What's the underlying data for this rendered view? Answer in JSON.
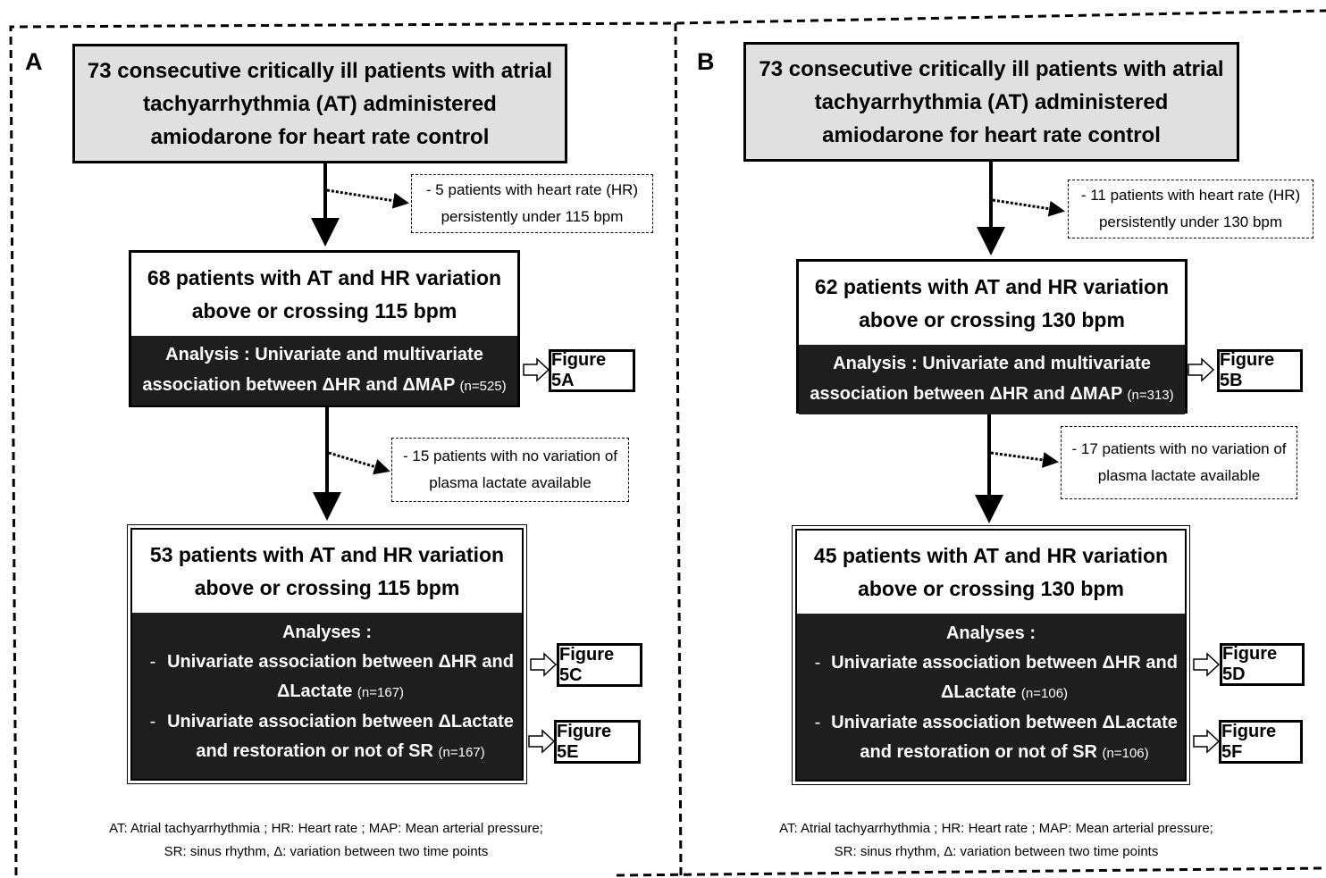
{
  "panels": [
    {
      "letter": "A",
      "top_box": "73 consecutive critically ill patients with atrial tachyarrhythmia (AT) administered amiodarone for heart rate control",
      "exclusion1": "- 5 patients with heart rate (HR) persistently under 115 bpm",
      "mid_title": "68 patients with AT and HR variation above or crossing 115 bpm",
      "mid_analysis": "Analysis : Univariate and multivariate association between ΔHR and ΔMAP",
      "mid_n": "(n=525)",
      "fig1": "Figure 5A",
      "exclusion2": "- 15 patients with no variation of plasma lactate available",
      "bot_title": "53 patients with AT and HR variation above or crossing 115 bpm",
      "bot_head": "Analyses :",
      "bullet1": "Univariate association between ΔHR and ΔLactate",
      "bullet1_n": "(n=167)",
      "bullet2": "Univariate association between ΔLactate and restoration or not of SR",
      "bullet2_n": "(n=167)",
      "fig2": "Figure 5C",
      "fig3": "Figure 5E",
      "footnote1": "AT: Atrial tachyarrhythmia ; HR: Heart rate ; MAP: Mean arterial pressure;",
      "footnote2": "SR: sinus rhythm, Δ: variation between two time points"
    },
    {
      "letter": "B",
      "top_box": "73 consecutive critically ill patients with atrial tachyarrhythmia (AT) administered amiodarone for heart rate control",
      "exclusion1": "- 11 patients with heart rate (HR) persistently under 130 bpm",
      "mid_title": "62 patients with AT and HR variation above or crossing 130 bpm",
      "mid_analysis": "Analysis : Univariate and multivariate association between ΔHR and ΔMAP",
      "mid_n": "(n=313)",
      "fig1": "Figure 5B",
      "exclusion2": "- 17 patients with no variation of plasma lactate available",
      "bot_title": "45 patients with AT and HR variation above or crossing 130 bpm",
      "bot_head": "Analyses :",
      "bullet1": "Univariate association between ΔHR and ΔLactate",
      "bullet1_n": "(n=106)",
      "bullet2": "Univariate association between ΔLactate and restoration or not of SR",
      "bullet2_n": "(n=106)",
      "fig2": "Figure 5D",
      "fig3": "Figure 5F",
      "footnote1": "AT: Atrial tachyarrhythmia ; HR: Heart rate ; MAP: Mean arterial pressure;",
      "footnote2": "SR: sinus rhythm, Δ: variation between two time points"
    }
  ]
}
